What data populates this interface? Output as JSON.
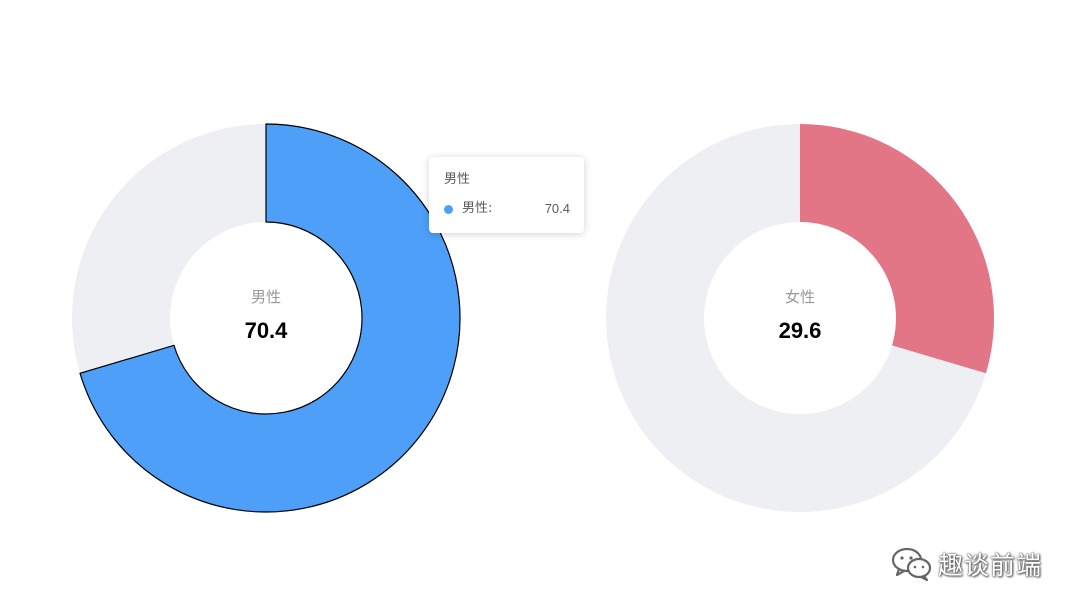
{
  "chart_data": [
    {
      "type": "pie",
      "subtype": "donut",
      "center_label": "男性",
      "center_value": "70.4",
      "value": 70.4,
      "total": 100,
      "color": "#4d9ff8",
      "track_color": "#eeeff3",
      "highlighted": true,
      "slices": [
        {
          "name": "男性",
          "value": 70.4
        },
        {
          "name": "",
          "value": 29.6
        }
      ]
    },
    {
      "type": "pie",
      "subtype": "donut",
      "center_label": "女性",
      "center_value": "29.6",
      "value": 29.6,
      "total": 100,
      "color": "#e27686",
      "track_color": "#eeeff3",
      "highlighted": false,
      "slices": [
        {
          "name": "女性",
          "value": 29.6
        },
        {
          "name": "",
          "value": 70.4
        }
      ]
    }
  ],
  "tooltip": {
    "title": "男性",
    "name": "男性:",
    "value": "70.4",
    "marker_color": "#4d9ff8"
  },
  "watermark": {
    "text": "趣谈前端",
    "icon": "wechat-icon"
  },
  "colors": {
    "label": "#999999",
    "value": "#000000",
    "track": "#eeeff3"
  }
}
